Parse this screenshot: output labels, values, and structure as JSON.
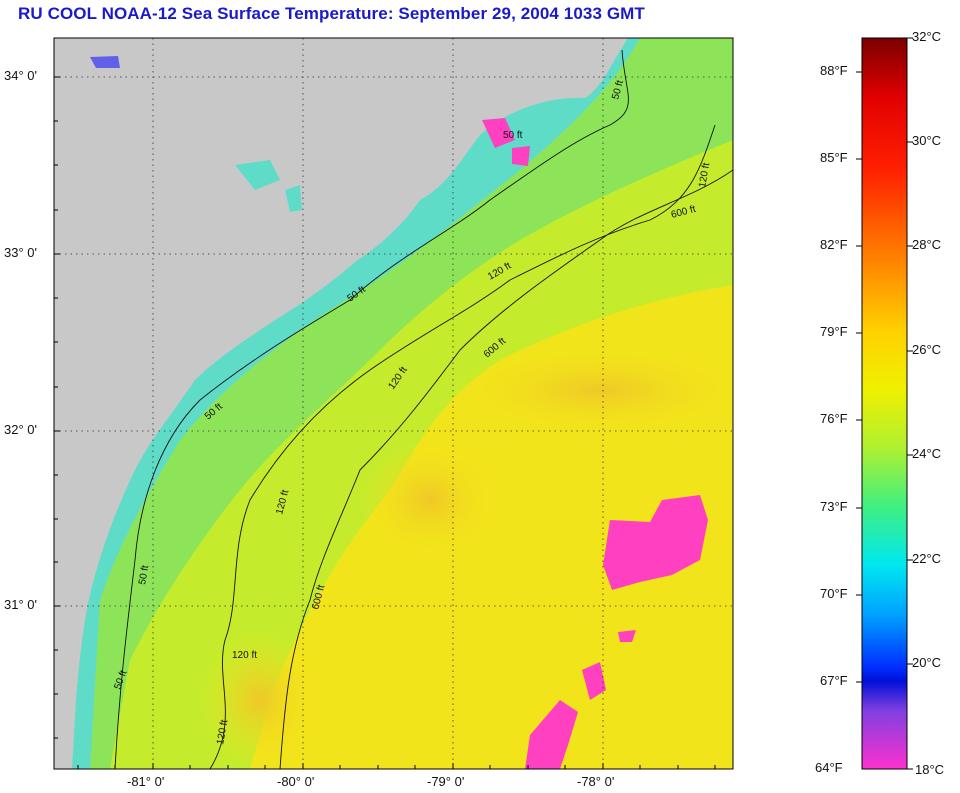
{
  "title": "RU COOL  NOAA-12  Sea Surface Temperature:  September 29, 2004 1033 GMT",
  "map": {
    "lat_labels": [
      "34° 0'",
      "33° 0'",
      "32° 0'",
      "31° 0'"
    ],
    "lon_labels": [
      "-81° 0'",
      "-80° 0'",
      "-79° 0'",
      "-78° 0'"
    ],
    "contour_labels": [
      "50 ft",
      "50 ft",
      "50 ft",
      "50 ft",
      "50 ft",
      "50 ft",
      "120 ft",
      "120 ft",
      "120 ft",
      "120 ft",
      "120 ft",
      "120 ft",
      "600 ft",
      "600 ft",
      "600 ft"
    ],
    "colors": {
      "land": "#c8c8c8",
      "cold_ocean": "#5fdcc8",
      "mid_ocean": "#b8ee38",
      "warm_ocean": "#f2e41a",
      "hot_spot": "#f0cc20",
      "cloud": "#ff40c0"
    }
  },
  "colorbar": {
    "fahrenheit": [
      "88°F",
      "85°F",
      "82°F",
      "79°F",
      "76°F",
      "73°F",
      "70°F",
      "67°F",
      "64°F"
    ],
    "celsius": [
      "32°C",
      "30°C",
      "28°C",
      "26°C",
      "24°C",
      "22°C",
      "20°C",
      "18°C"
    ],
    "range_c": [
      18,
      32
    ]
  }
}
